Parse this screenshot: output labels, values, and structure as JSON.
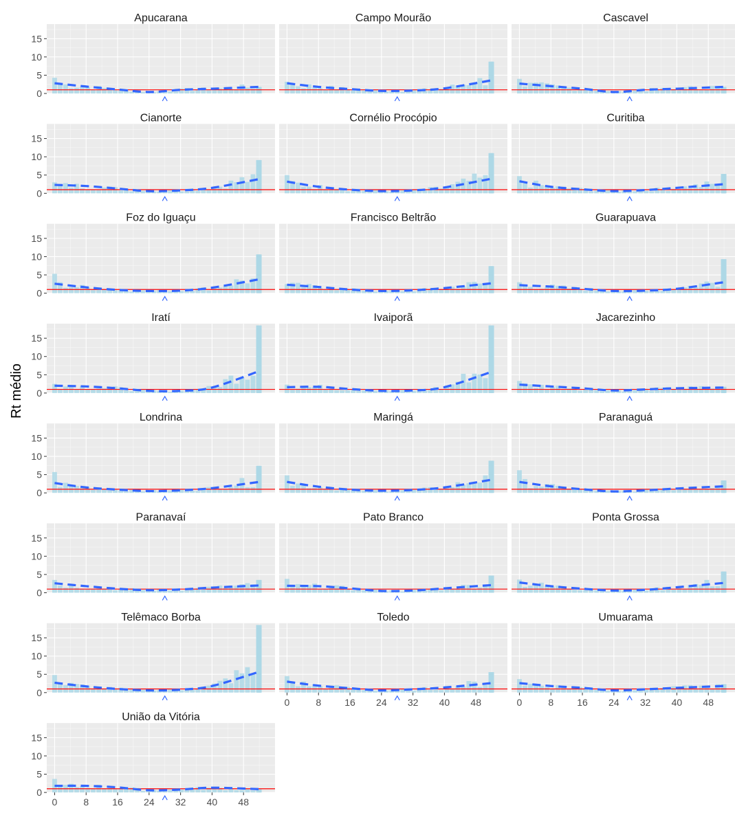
{
  "chart_data": {
    "type": "bar",
    "description_free": true,
    "ylabel": "Rt médio",
    "xlabel": "",
    "x_ticks": [
      0,
      8,
      16,
      24,
      32,
      40,
      48
    ],
    "y_ticks": [
      0,
      5,
      10,
      15
    ],
    "xlim": [
      -2,
      56
    ],
    "ylim": [
      0,
      19
    ],
    "reference_line": 1,
    "marker_x": 28,
    "colors": {
      "bars": "#ADD8E6",
      "trend": "#3366FF",
      "reference": "#FF0000",
      "panel": "#EBEBEB"
    },
    "panels": [
      {
        "name": "Apucarana",
        "peak": 4.3,
        "last": 1.8,
        "trend": [
          2.8,
          1.9,
          1.1,
          0.4,
          1.0,
          1.3,
          1.8
        ]
      },
      {
        "name": "Campo Mourão",
        "peak": 3.2,
        "last": 8.7,
        "trend": [
          2.8,
          1.8,
          1.2,
          0.7,
          0.8,
          1.4,
          3.6
        ]
      },
      {
        "name": "Cascavel",
        "peak": 4.0,
        "last": 1.8,
        "trend": [
          2.7,
          2.0,
          1.3,
          0.4,
          1.0,
          1.3,
          1.8
        ]
      },
      {
        "name": "Cianorte",
        "peak": 3.0,
        "last": 9.1,
        "trend": [
          2.3,
          2.0,
          1.3,
          0.6,
          0.8,
          1.5,
          3.9
        ]
      },
      {
        "name": "Cornélio Procópio",
        "peak": 5.0,
        "last": 11.0,
        "trend": [
          3.2,
          1.8,
          1.0,
          0.6,
          0.8,
          1.6,
          4.0
        ]
      },
      {
        "name": "Curitiba",
        "peak": 4.7,
        "last": 5.3,
        "trend": [
          3.3,
          1.8,
          1.1,
          0.6,
          0.9,
          1.5,
          2.5
        ]
      },
      {
        "name": "Foz do Iguaçu",
        "peak": 5.3,
        "last": 10.6,
        "trend": [
          2.6,
          1.6,
          0.9,
          0.6,
          0.7,
          1.5,
          3.8
        ]
      },
      {
        "name": "Francisco Beltrão",
        "peak": 2.5,
        "last": 7.4,
        "trend": [
          2.3,
          1.7,
          1.0,
          0.6,
          0.8,
          1.4,
          2.7
        ]
      },
      {
        "name": "Guarapuava",
        "peak": 3.0,
        "last": 9.3,
        "trend": [
          2.2,
          1.8,
          1.2,
          0.6,
          0.7,
          1.2,
          3.0
        ]
      },
      {
        "name": "Iratí",
        "peak": 2.5,
        "last": 18.5,
        "trend": [
          2.0,
          1.8,
          1.3,
          0.6,
          0.6,
          1.5,
          6.0
        ]
      },
      {
        "name": "Ivaiporã",
        "peak": 2.3,
        "last": 18.5,
        "trend": [
          1.6,
          1.7,
          1.1,
          0.6,
          0.7,
          1.6,
          5.8
        ]
      },
      {
        "name": "Jacarezinho",
        "peak": 3.3,
        "last": 1.7,
        "trend": [
          2.3,
          1.8,
          1.3,
          0.7,
          1.0,
          1.3,
          1.5
        ]
      },
      {
        "name": "Londrina",
        "peak": 5.7,
        "last": 7.4,
        "trend": [
          2.7,
          1.5,
          0.9,
          0.5,
          0.7,
          1.3,
          3.0
        ]
      },
      {
        "name": "Maringá",
        "peak": 4.8,
        "last": 8.8,
        "trend": [
          3.0,
          1.7,
          0.9,
          0.6,
          0.8,
          1.5,
          3.6
        ]
      },
      {
        "name": "Paranaguá",
        "peak": 6.2,
        "last": 3.4,
        "trend": [
          3.0,
          1.8,
          1.0,
          0.4,
          0.7,
          1.2,
          1.8
        ]
      },
      {
        "name": "Paranavaí",
        "peak": 3.5,
        "last": 3.5,
        "trend": [
          2.6,
          1.8,
          1.1,
          0.7,
          0.9,
          1.4,
          2.0
        ]
      },
      {
        "name": "Pato Branco",
        "peak": 3.8,
        "last": 4.7,
        "trend": [
          1.9,
          1.8,
          1.2,
          0.5,
          0.6,
          1.2,
          2.1
        ]
      },
      {
        "name": "Ponta Grossa",
        "peak": 3.6,
        "last": 5.8,
        "trend": [
          2.8,
          1.8,
          1.1,
          0.6,
          0.8,
          1.5,
          2.7
        ]
      },
      {
        "name": "Telêmaco Borba",
        "peak": 4.8,
        "last": 18.5,
        "trend": [
          2.7,
          1.7,
          1.0,
          0.6,
          0.8,
          1.8,
          5.7
        ]
      },
      {
        "name": "Toledo",
        "peak": 4.5,
        "last": 5.6,
        "trend": [
          3.0,
          1.9,
          1.2,
          0.6,
          0.9,
          1.4,
          2.6
        ]
      },
      {
        "name": "Umuarama",
        "peak": 3.7,
        "last": 2.3,
        "trend": [
          2.6,
          1.8,
          1.3,
          0.6,
          0.9,
          1.3,
          1.8
        ]
      },
      {
        "name": "União da Vitória",
        "peak": 3.7,
        "last": 1.0,
        "trend": [
          1.8,
          1.8,
          1.4,
          0.6,
          0.8,
          1.3,
          0.9
        ]
      }
    ]
  }
}
